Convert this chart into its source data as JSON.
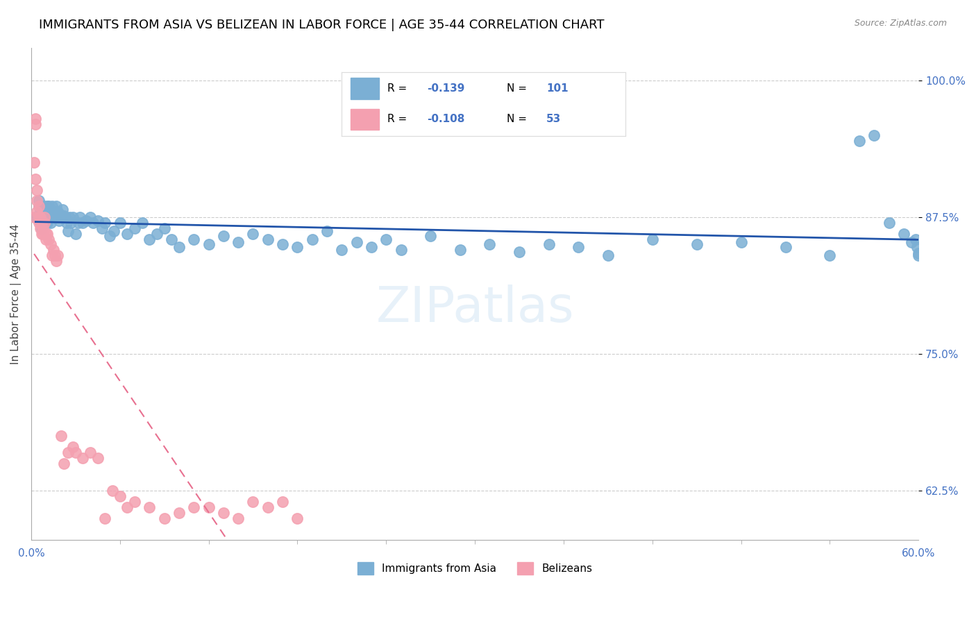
{
  "title": "IMMIGRANTS FROM ASIA VS BELIZEAN IN LABOR FORCE | AGE 35-44 CORRELATION CHART",
  "source_text": "Source: ZipAtlas.com",
  "xlabel": "",
  "ylabel": "In Labor Force | Age 35-44",
  "xlim": [
    0.0,
    0.6
  ],
  "ylim": [
    0.58,
    1.03
  ],
  "xtick_labels": [
    "0.0%",
    "60.0%"
  ],
  "ytick_labels": [
    "62.5%",
    "75.0%",
    "87.5%",
    "100.0%"
  ],
  "ytick_positions": [
    0.625,
    0.75,
    0.875,
    1.0
  ],
  "title_fontsize": 13,
  "axis_label_color": "#4472c4",
  "legend_r1": "R = -0.139",
  "legend_n1": "N = 101",
  "legend_r2": "R = -0.108",
  "legend_n2": "N =  53",
  "blue_color": "#7BAFD4",
  "pink_color": "#F4A0B0",
  "blue_line_color": "#2255AA",
  "pink_line_color": "#E87090",
  "watermark": "ZIPatlas",
  "blue_scatter_x": [
    0.003,
    0.005,
    0.005,
    0.006,
    0.006,
    0.006,
    0.007,
    0.007,
    0.007,
    0.008,
    0.009,
    0.009,
    0.01,
    0.01,
    0.01,
    0.011,
    0.011,
    0.011,
    0.012,
    0.012,
    0.013,
    0.013,
    0.013,
    0.014,
    0.014,
    0.015,
    0.015,
    0.016,
    0.016,
    0.017,
    0.017,
    0.018,
    0.018,
    0.019,
    0.019,
    0.02,
    0.021,
    0.022,
    0.023,
    0.024,
    0.025,
    0.026,
    0.027,
    0.028,
    0.03,
    0.032,
    0.033,
    0.035,
    0.037,
    0.04,
    0.042,
    0.045,
    0.048,
    0.05,
    0.053,
    0.056,
    0.06,
    0.065,
    0.07,
    0.075,
    0.08,
    0.085,
    0.09,
    0.095,
    0.1,
    0.11,
    0.12,
    0.13,
    0.14,
    0.15,
    0.16,
    0.17,
    0.18,
    0.19,
    0.2,
    0.21,
    0.22,
    0.23,
    0.24,
    0.25,
    0.27,
    0.29,
    0.31,
    0.33,
    0.35,
    0.37,
    0.39,
    0.42,
    0.45,
    0.48,
    0.51,
    0.54,
    0.56,
    0.57,
    0.58,
    0.59,
    0.595,
    0.598,
    0.599,
    0.6,
    0.6
  ],
  "blue_scatter_y": [
    0.875,
    0.89,
    0.885,
    0.88,
    0.875,
    0.87,
    0.875,
    0.87,
    0.865,
    0.88,
    0.875,
    0.885,
    0.88,
    0.875,
    0.87,
    0.885,
    0.875,
    0.87,
    0.885,
    0.875,
    0.88,
    0.875,
    0.87,
    0.885,
    0.875,
    0.88,
    0.875,
    0.88,
    0.875,
    0.885,
    0.875,
    0.88,
    0.875,
    0.878,
    0.872,
    0.875,
    0.882,
    0.876,
    0.875,
    0.87,
    0.862,
    0.875,
    0.87,
    0.875,
    0.86,
    0.87,
    0.875,
    0.87,
    0.872,
    0.875,
    0.87,
    0.872,
    0.865,
    0.87,
    0.858,
    0.862,
    0.87,
    0.86,
    0.865,
    0.87,
    0.855,
    0.86,
    0.865,
    0.855,
    0.848,
    0.855,
    0.85,
    0.858,
    0.852,
    0.86,
    0.855,
    0.85,
    0.848,
    0.855,
    0.862,
    0.845,
    0.852,
    0.848,
    0.855,
    0.845,
    0.858,
    0.845,
    0.85,
    0.843,
    0.85,
    0.848,
    0.84,
    0.855,
    0.85,
    0.852,
    0.848,
    0.84,
    0.945,
    0.95,
    0.87,
    0.86,
    0.852,
    0.855,
    0.848,
    0.842,
    0.84
  ],
  "pink_scatter_x": [
    0.002,
    0.002,
    0.003,
    0.003,
    0.003,
    0.004,
    0.004,
    0.004,
    0.005,
    0.005,
    0.005,
    0.006,
    0.006,
    0.007,
    0.007,
    0.008,
    0.008,
    0.009,
    0.009,
    0.01,
    0.01,
    0.011,
    0.012,
    0.013,
    0.014,
    0.015,
    0.016,
    0.017,
    0.018,
    0.02,
    0.022,
    0.025,
    0.028,
    0.03,
    0.035,
    0.04,
    0.045,
    0.05,
    0.055,
    0.06,
    0.065,
    0.07,
    0.08,
    0.09,
    0.1,
    0.11,
    0.12,
    0.13,
    0.14,
    0.15,
    0.16,
    0.17,
    0.18
  ],
  "pink_scatter_y": [
    0.875,
    0.925,
    0.965,
    0.96,
    0.91,
    0.9,
    0.89,
    0.88,
    0.885,
    0.875,
    0.87,
    0.875,
    0.865,
    0.87,
    0.86,
    0.865,
    0.86,
    0.875,
    0.87,
    0.86,
    0.855,
    0.86,
    0.855,
    0.85,
    0.84,
    0.845,
    0.84,
    0.835,
    0.84,
    0.675,
    0.65,
    0.66,
    0.665,
    0.66,
    0.655,
    0.66,
    0.655,
    0.6,
    0.625,
    0.62,
    0.61,
    0.615,
    0.61,
    0.6,
    0.605,
    0.61,
    0.61,
    0.605,
    0.6,
    0.615,
    0.61,
    0.615,
    0.6
  ]
}
